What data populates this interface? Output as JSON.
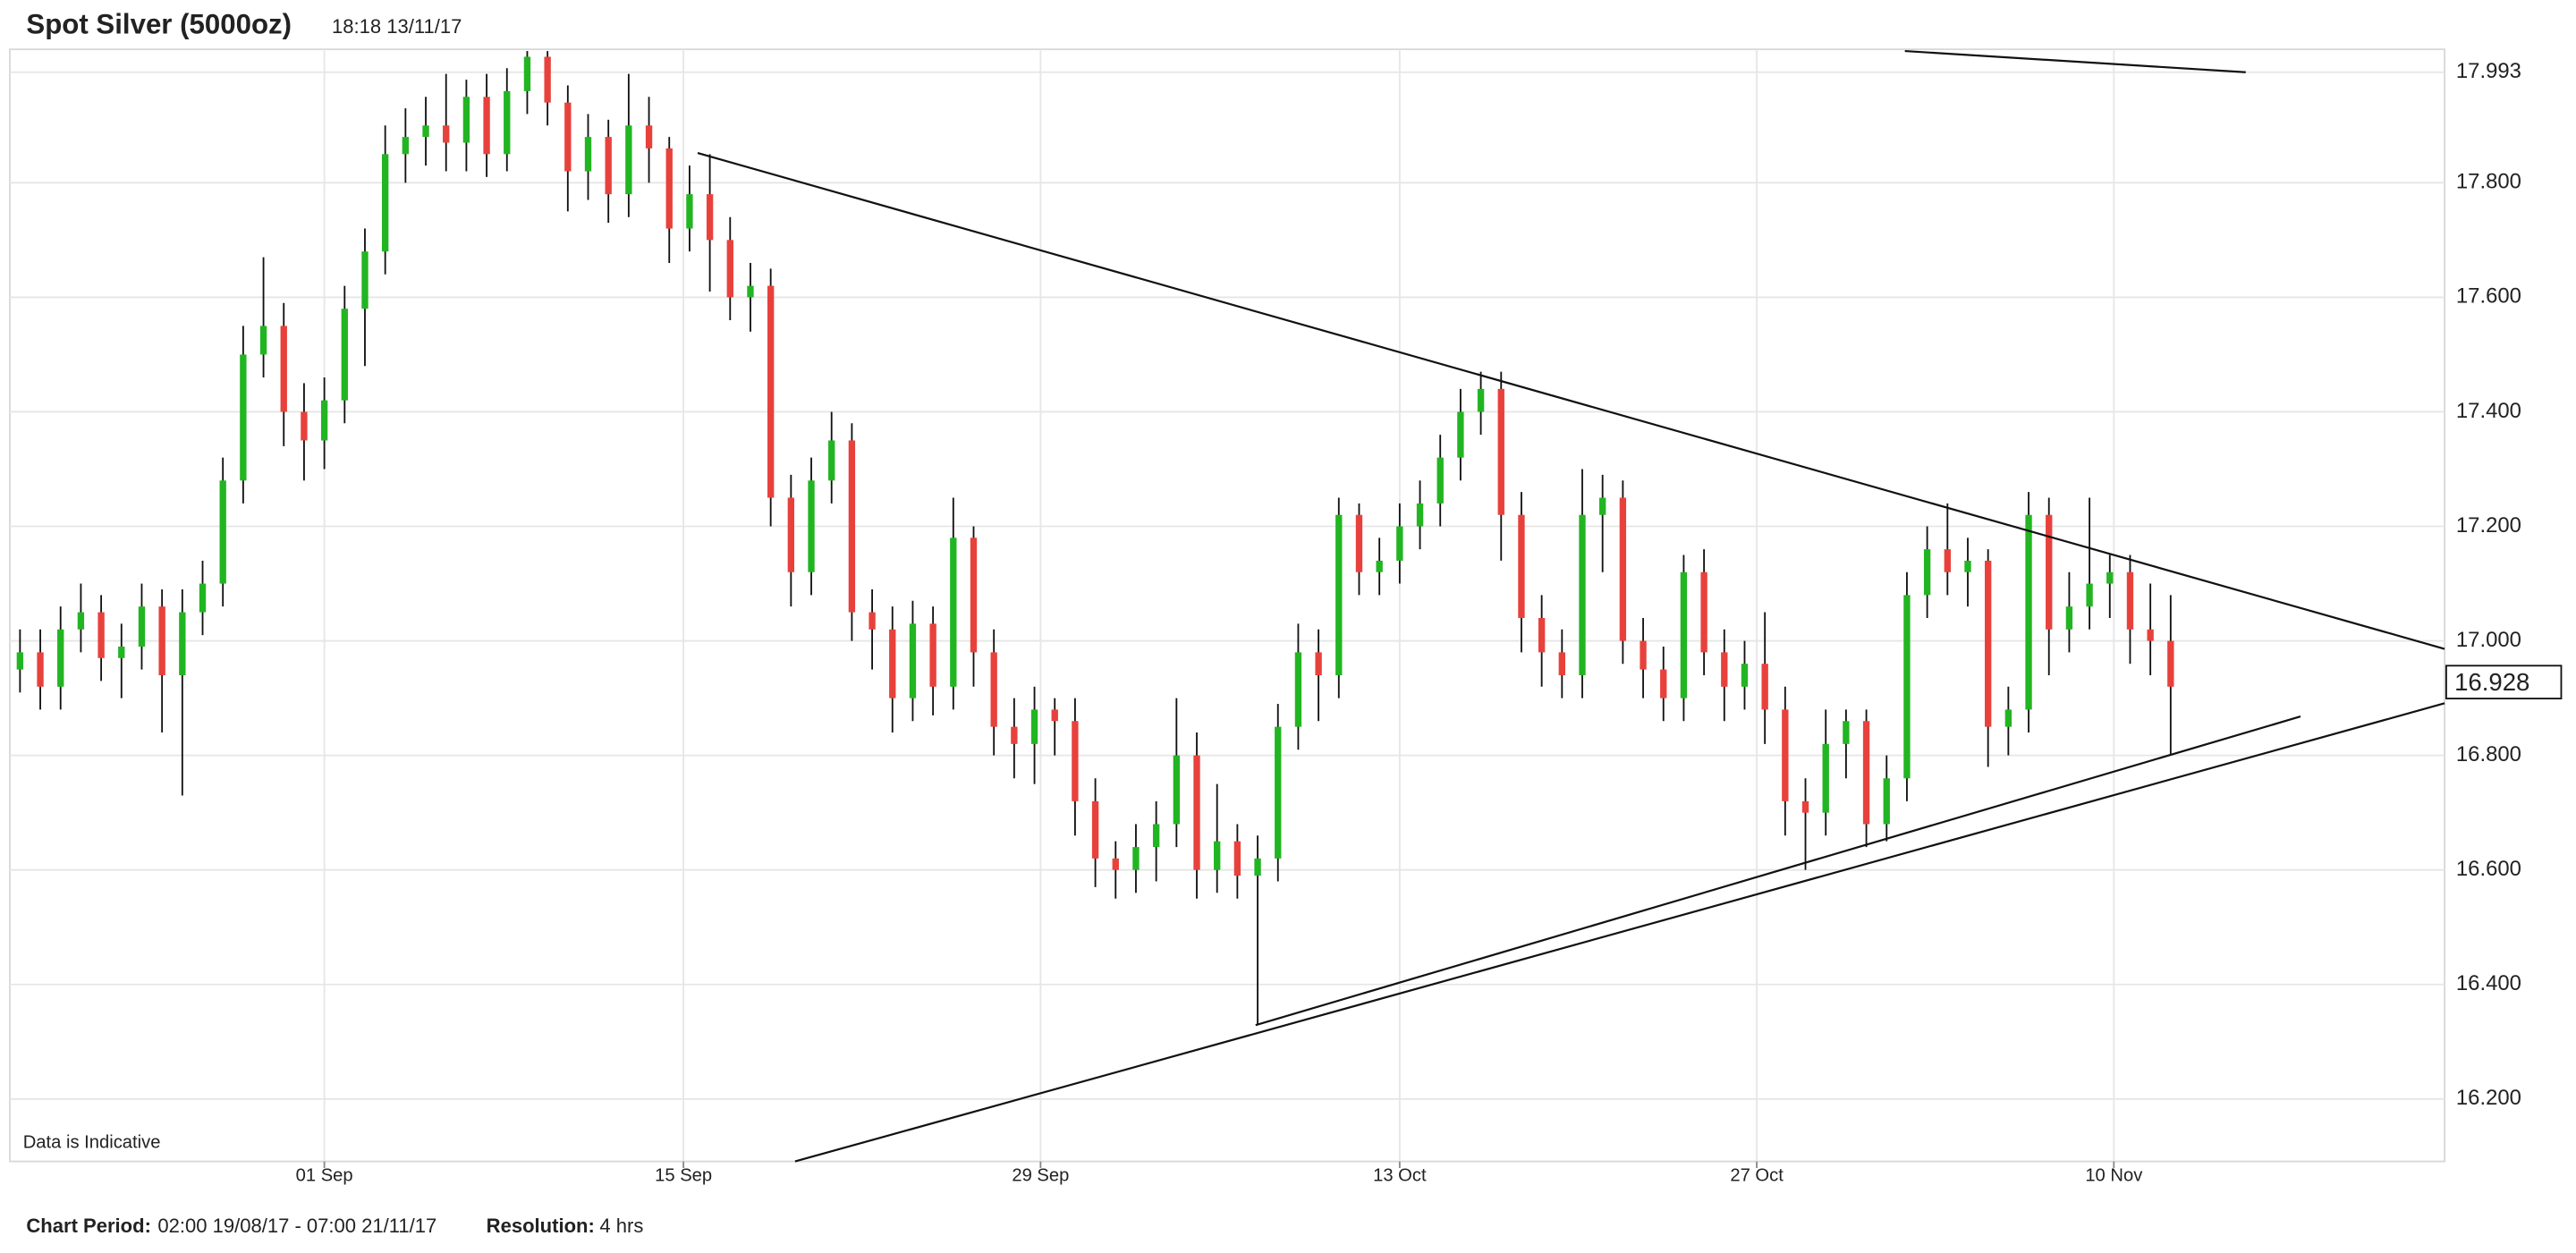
{
  "header": {
    "title": "Spot Silver (5000oz)",
    "timestamp": "18:18 13/11/17"
  },
  "chart_data": {
    "type": "candlestick",
    "note": "Data is Indicative",
    "last_price": 16.928,
    "colors": {
      "up": "#22b522",
      "down": "#e8413c"
    },
    "xlim": [
      0,
      120
    ],
    "xticks": [
      {
        "value": 15.5,
        "label": "01 Sep"
      },
      {
        "value": 33.2,
        "label": "15 Sep"
      },
      {
        "value": 50.8,
        "label": "29 Sep"
      },
      {
        "value": 68.5,
        "label": "13 Oct"
      },
      {
        "value": 86.1,
        "label": "27 Oct"
      },
      {
        "value": 103.7,
        "label": "10 Nov"
      }
    ],
    "ylim": [
      16.091,
      18.033
    ],
    "yticks": [
      17.993,
      {
        "value": 17.8,
        "label": "17.800"
      },
      {
        "value": 17.6,
        "label": "17.600"
      },
      {
        "value": 17.4,
        "label": "17.400"
      },
      {
        "value": 17.2,
        "label": "17.200"
      },
      {
        "value": 17.0,
        "label": "17.000"
      },
      {
        "value": 16.8,
        "label": "16.800"
      },
      {
        "value": 16.6,
        "label": "16.600"
      },
      {
        "value": 16.4,
        "label": "16.400"
      },
      {
        "value": 16.2,
        "label": "16.200"
      }
    ],
    "grid": true,
    "open": [
      16.95,
      16.98,
      16.92,
      17.02,
      17.05,
      16.97,
      16.99,
      17.06,
      16.94,
      17.05,
      17.1,
      17.28,
      17.5,
      17.55,
      17.4,
      17.35,
      17.42,
      17.58,
      17.68,
      17.85,
      17.88,
      17.9,
      17.87,
      17.95,
      17.85,
      17.96,
      18.02,
      17.94,
      17.82,
      17.88,
      17.78,
      17.9,
      17.86,
      17.72,
      17.78,
      17.7,
      17.6,
      17.62,
      17.25,
      17.12,
      17.28,
      17.35,
      17.05,
      17.02,
      16.9,
      17.03,
      16.92,
      17.18,
      16.98,
      16.85,
      16.82,
      16.88,
      16.86,
      16.72,
      16.62,
      16.6,
      16.64,
      16.68,
      16.8,
      16.6,
      16.65,
      16.59,
      16.62,
      16.85,
      16.98,
      16.94,
      17.22,
      17.12,
      17.14,
      17.2,
      17.24,
      17.32,
      17.4,
      17.44,
      17.22,
      17.04,
      16.98,
      16.94,
      17.22,
      17.25,
      17.0,
      16.95,
      16.9,
      17.12,
      16.98,
      16.92,
      16.96,
      16.88,
      16.72,
      16.7,
      16.82,
      16.86,
      16.68,
      16.76,
      17.08,
      17.16,
      17.12,
      17.14,
      16.85,
      16.88,
      17.22,
      17.02,
      17.06,
      17.1,
      17.12,
      17.02,
      17.0
    ],
    "high": [
      17.02,
      17.02,
      17.06,
      17.1,
      17.08,
      17.03,
      17.1,
      17.09,
      17.09,
      17.14,
      17.32,
      17.55,
      17.67,
      17.59,
      17.45,
      17.46,
      17.62,
      17.72,
      17.9,
      17.93,
      17.95,
      17.99,
      17.98,
      17.99,
      18.0,
      18.03,
      18.03,
      17.97,
      17.92,
      17.91,
      17.99,
      17.95,
      17.88,
      17.83,
      17.85,
      17.74,
      17.66,
      17.65,
      17.29,
      17.32,
      17.4,
      17.38,
      17.09,
      17.06,
      17.07,
      17.06,
      17.25,
      17.2,
      17.02,
      16.9,
      16.92,
      16.9,
      16.9,
      16.76,
      16.65,
      16.68,
      16.72,
      16.9,
      16.84,
      16.75,
      16.68,
      16.66,
      16.89,
      17.03,
      17.02,
      17.25,
      17.24,
      17.18,
      17.24,
      17.28,
      17.36,
      17.44,
      17.47,
      17.47,
      17.26,
      17.08,
      17.02,
      17.3,
      17.29,
      17.28,
      17.04,
      16.99,
      17.15,
      17.16,
      17.02,
      17.0,
      17.05,
      16.92,
      16.76,
      16.88,
      16.88,
      16.88,
      16.8,
      17.12,
      17.2,
      17.24,
      17.18,
      17.16,
      16.92,
      17.26,
      17.25,
      17.12,
      17.25,
      17.15,
      17.15,
      17.1,
      17.08
    ],
    "low": [
      16.91,
      16.88,
      16.88,
      16.98,
      16.93,
      16.9,
      16.95,
      16.84,
      16.73,
      17.01,
      17.06,
      17.24,
      17.46,
      17.34,
      17.28,
      17.3,
      17.38,
      17.48,
      17.64,
      17.8,
      17.83,
      17.82,
      17.82,
      17.81,
      17.82,
      17.92,
      17.9,
      17.75,
      17.77,
      17.73,
      17.74,
      17.8,
      17.66,
      17.68,
      17.61,
      17.56,
      17.54,
      17.2,
      17.06,
      17.08,
      17.24,
      17.0,
      16.95,
      16.84,
      16.86,
      16.87,
      16.88,
      16.92,
      16.8,
      16.76,
      16.75,
      16.8,
      16.66,
      16.57,
      16.55,
      16.56,
      16.58,
      16.64,
      16.55,
      16.56,
      16.55,
      16.33,
      16.58,
      16.81,
      16.86,
      16.9,
      17.08,
      17.08,
      17.1,
      17.16,
      17.2,
      17.28,
      17.36,
      17.14,
      16.98,
      16.92,
      16.9,
      16.9,
      17.12,
      16.96,
      16.9,
      16.86,
      16.86,
      16.94,
      16.86,
      16.88,
      16.82,
      16.66,
      16.6,
      16.66,
      16.76,
      16.64,
      16.65,
      16.72,
      17.04,
      17.08,
      17.06,
      16.78,
      16.8,
      16.84,
      16.94,
      16.98,
      17.02,
      17.04,
      16.96,
      16.94,
      16.8
    ],
    "close": [
      16.98,
      16.92,
      17.02,
      17.05,
      16.97,
      16.99,
      17.06,
      16.94,
      17.05,
      17.1,
      17.28,
      17.5,
      17.55,
      17.4,
      17.35,
      17.42,
      17.58,
      17.68,
      17.85,
      17.88,
      17.9,
      17.87,
      17.95,
      17.85,
      17.96,
      18.02,
      17.94,
      17.82,
      17.88,
      17.78,
      17.9,
      17.86,
      17.72,
      17.78,
      17.7,
      17.6,
      17.62,
      17.25,
      17.12,
      17.28,
      17.35,
      17.05,
      17.02,
      16.9,
      17.03,
      16.92,
      17.18,
      16.98,
      16.85,
      16.82,
      16.88,
      16.86,
      16.72,
      16.62,
      16.6,
      16.64,
      16.68,
      16.8,
      16.6,
      16.65,
      16.59,
      16.62,
      16.85,
      16.98,
      16.94,
      17.22,
      17.12,
      17.14,
      17.2,
      17.24,
      17.32,
      17.4,
      17.44,
      17.22,
      17.04,
      16.98,
      16.94,
      17.22,
      17.25,
      17.0,
      16.95,
      16.9,
      17.12,
      16.98,
      16.92,
      16.96,
      16.88,
      16.72,
      16.7,
      16.82,
      16.86,
      16.68,
      16.76,
      17.08,
      17.16,
      17.12,
      17.14,
      16.85,
      16.88,
      17.22,
      17.02,
      17.06,
      17.1,
      17.12,
      17.02,
      17.0,
      16.92
    ],
    "trendlines": [
      {
        "x": [
          93.4,
          110.2
        ],
        "y": [
          18.03,
          17.993
        ]
      },
      {
        "x": [
          33.9,
          120
        ],
        "y": [
          17.852,
          16.986
        ]
      },
      {
        "x": [
          38.7,
          120
        ],
        "y": [
          16.091,
          16.891
        ]
      },
      {
        "x": [
          61.4,
          112.9
        ],
        "y": [
          16.329,
          16.868
        ]
      }
    ]
  },
  "footer": {
    "period_label": "Chart Period:",
    "period": "02:00 19/08/17 - 07:00 21/11/17",
    "resolution_label": "Resolution:",
    "resolution": "4 hrs"
  }
}
